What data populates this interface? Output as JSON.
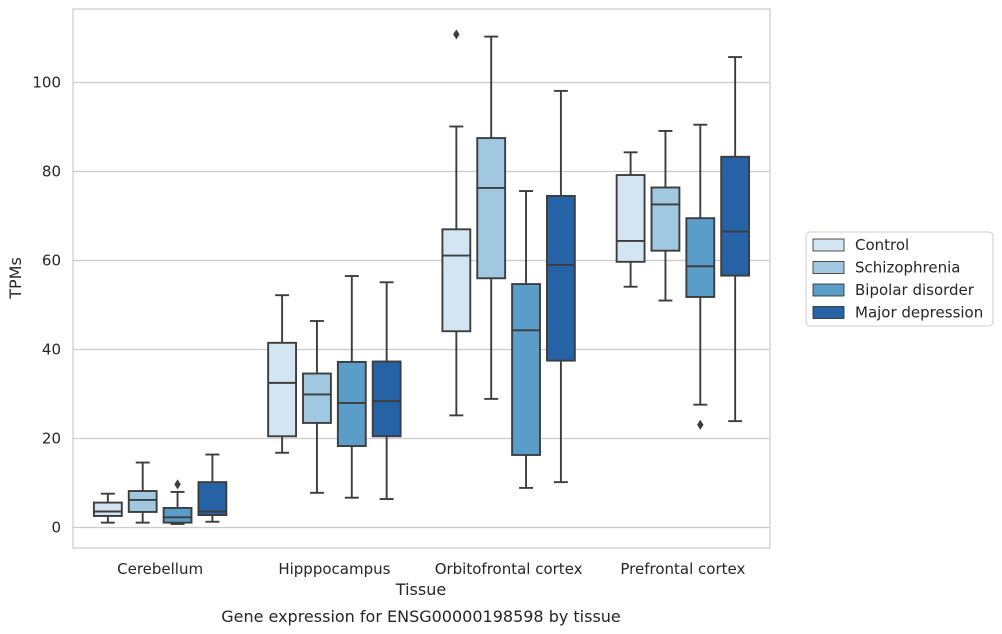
{
  "chart_data": {
    "type": "box",
    "title": "",
    "caption": "Gene expression for ENSG00000198598 by tissue",
    "xlabel": "Tissue",
    "ylabel": "TPMs",
    "ylim": [
      -4.6,
      116.5
    ],
    "yticks": [
      0,
      20,
      40,
      60,
      80,
      100
    ],
    "grid": "horizontal",
    "legend_position": "right",
    "categories": [
      "Cerebellum",
      "Hipppocampus",
      "Orbitofrontal cortex",
      "Prefrontal cortex"
    ],
    "series": [
      {
        "name": "Control",
        "color": "#d3e4f3",
        "boxes": [
          {
            "whislo": 1.1,
            "q1": 2.6,
            "med": 3.6,
            "q3": 5.6,
            "whishi": 7.6,
            "fliers": []
          },
          {
            "whislo": 16.8,
            "q1": 20.5,
            "med": 32.5,
            "q3": 41.5,
            "whishi": 52.2,
            "fliers": []
          },
          {
            "whislo": 25.2,
            "q1": 44.1,
            "med": 61.1,
            "q3": 67.0,
            "whishi": 90.1,
            "fliers": [
              110.8
            ]
          },
          {
            "whislo": 54.1,
            "q1": 59.7,
            "med": 64.4,
            "q3": 79.2,
            "whishi": 84.3,
            "fliers": []
          }
        ]
      },
      {
        "name": "Schizophrenia",
        "color": "#a1c8e1",
        "boxes": [
          {
            "whislo": 1.1,
            "q1": 3.5,
            "med": 6.2,
            "q3": 8.2,
            "whishi": 14.6,
            "fliers": []
          },
          {
            "whislo": 7.8,
            "q1": 23.5,
            "med": 29.9,
            "q3": 34.6,
            "whishi": 46.4,
            "fliers": []
          },
          {
            "whislo": 28.9,
            "q1": 56.0,
            "med": 76.3,
            "q3": 87.5,
            "whishi": 110.3,
            "fliers": []
          },
          {
            "whislo": 51.0,
            "q1": 62.2,
            "med": 72.6,
            "q3": 76.4,
            "whishi": 89.1,
            "fliers": []
          }
        ]
      },
      {
        "name": "Bipolar disorder",
        "color": "#5a9dc9",
        "boxes": [
          {
            "whislo": 0.8,
            "q1": 1.1,
            "med": 2.3,
            "q3": 4.4,
            "whishi": 8.0,
            "fliers": [
              9.7
            ]
          },
          {
            "whislo": 6.7,
            "q1": 18.3,
            "med": 28.0,
            "q3": 37.2,
            "whishi": 56.5,
            "fliers": []
          },
          {
            "whislo": 8.9,
            "q1": 16.3,
            "med": 44.3,
            "q3": 54.7,
            "whishi": 75.6,
            "fliers": []
          },
          {
            "whislo": 27.6,
            "q1": 51.8,
            "med": 58.7,
            "q3": 69.5,
            "whishi": 90.5,
            "fliers": [
              23.1
            ]
          }
        ]
      },
      {
        "name": "Major depression",
        "color": "#2563a6",
        "boxes": [
          {
            "whislo": 1.3,
            "q1": 2.8,
            "med": 3.6,
            "q3": 10.2,
            "whishi": 16.4,
            "fliers": []
          },
          {
            "whislo": 6.4,
            "q1": 20.5,
            "med": 28.4,
            "q3": 37.3,
            "whishi": 55.1,
            "fliers": []
          },
          {
            "whislo": 10.2,
            "q1": 37.5,
            "med": 59.0,
            "q3": 74.5,
            "whishi": 98.1,
            "fliers": []
          },
          {
            "whislo": 23.9,
            "q1": 56.6,
            "med": 66.5,
            "q3": 83.3,
            "whishi": 105.7,
            "fliers": []
          }
        ]
      }
    ]
  }
}
